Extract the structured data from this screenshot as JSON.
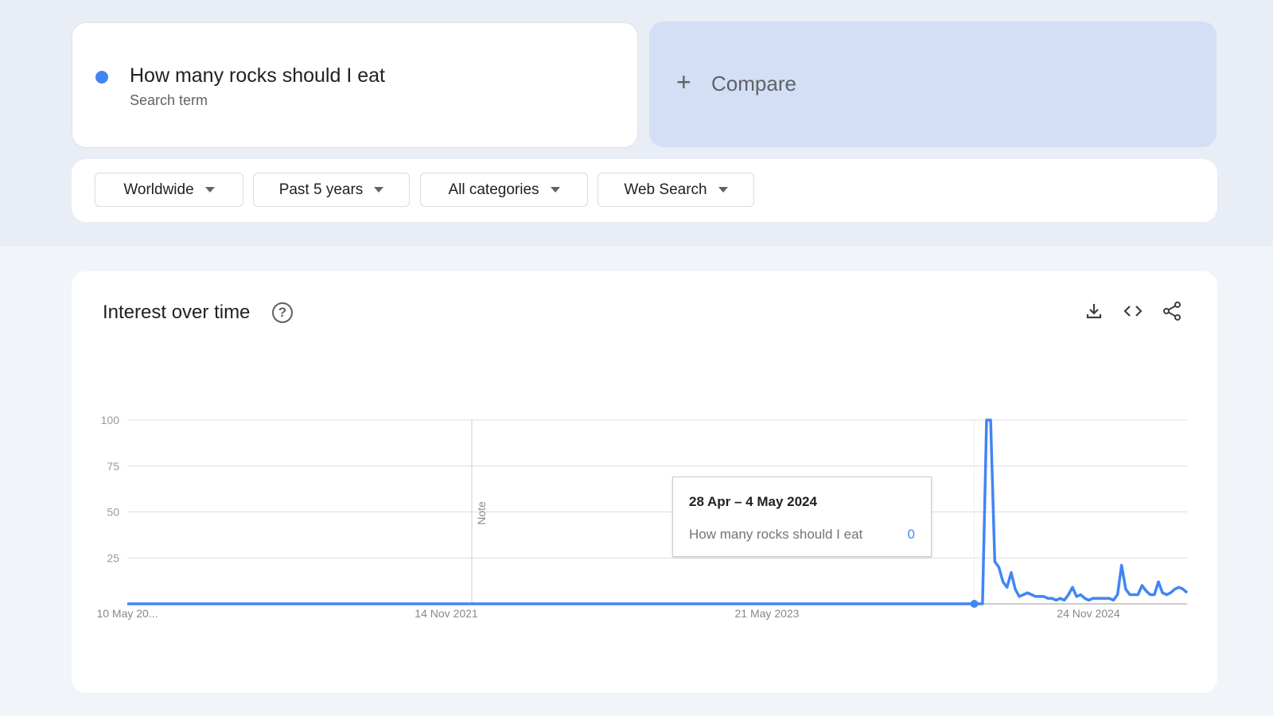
{
  "search": {
    "term": "How many rocks should I eat",
    "subtitle": "Search term",
    "dot_color": "#4285f4"
  },
  "compare": {
    "icon": "plus-icon",
    "plus": "+",
    "label": "Compare"
  },
  "filters": [
    {
      "label": "Worldwide"
    },
    {
      "label": "Past 5 years"
    },
    {
      "label": "All categories"
    },
    {
      "label": "Web Search"
    }
  ],
  "interest": {
    "title": "Interest over time",
    "help": "?",
    "actions": [
      "download-icon",
      "embed-code-icon",
      "share-icon"
    ]
  },
  "tooltip": {
    "date": "28 Apr – 4 May 2024",
    "term": "How many rocks should I eat",
    "value": "0"
  },
  "chart_data": {
    "type": "line",
    "title": "",
    "xlabel": "",
    "ylabel": "",
    "ylim": [
      0,
      100
    ],
    "yticks": [
      "25",
      "50",
      "75",
      "100"
    ],
    "xticks": [
      "10 May 20...",
      "14 Nov 2021",
      "21 May 2023",
      "24 Nov 2024"
    ],
    "annotation": "Note",
    "grid": true,
    "line_color": "#4285f4",
    "x_start": "10 May 2020",
    "x_step": "1 week",
    "series": [
      {
        "values": [
          0,
          0,
          0,
          0,
          0,
          0,
          0,
          0,
          0,
          0,
          0,
          0,
          0,
          0,
          0,
          0,
          0,
          0,
          0,
          0,
          0,
          0,
          0,
          0,
          0,
          0,
          0,
          0,
          0,
          0,
          0,
          0,
          0,
          0,
          0,
          0,
          0,
          0,
          0,
          0,
          0,
          0,
          0,
          0,
          0,
          0,
          0,
          0,
          0,
          0,
          0,
          0,
          0,
          0,
          0,
          0,
          0,
          0,
          0,
          0,
          0,
          0,
          0,
          0,
          0,
          0,
          0,
          0,
          0,
          0,
          0,
          0,
          0,
          0,
          0,
          0,
          0,
          0,
          0,
          0,
          0,
          0,
          0,
          0,
          0,
          0,
          0,
          0,
          0,
          0,
          0,
          0,
          0,
          0,
          0,
          0,
          0,
          0,
          0,
          0,
          0,
          0,
          0,
          0,
          0,
          0,
          0,
          0,
          0,
          0,
          0,
          0,
          0,
          0,
          0,
          0,
          0,
          0,
          0,
          0,
          0,
          0,
          0,
          0,
          0,
          0,
          0,
          0,
          0,
          0,
          0,
          0,
          0,
          0,
          0,
          0,
          0,
          0,
          0,
          0,
          0,
          0,
          0,
          0,
          0,
          0,
          0,
          0,
          0,
          0,
          0,
          0,
          0,
          0,
          0,
          0,
          0,
          0,
          0,
          0,
          0,
          0,
          0,
          0,
          0,
          0,
          0,
          0,
          0,
          0,
          0,
          0,
          0,
          0,
          0,
          0,
          0,
          0,
          0,
          0,
          0,
          0,
          0,
          0,
          0,
          0,
          0,
          0,
          0,
          0,
          0,
          0,
          0,
          0,
          0,
          0,
          0,
          0,
          0,
          0,
          0,
          0,
          0,
          0,
          0,
          0,
          0,
          0,
          0,
          0,
          100,
          100,
          23,
          20,
          12,
          9,
          17,
          8,
          4,
          5,
          6,
          5,
          4,
          4,
          4,
          3,
          3,
          2,
          3,
          2,
          5,
          9,
          4,
          5,
          3,
          2,
          3,
          3,
          3,
          3,
          3,
          2,
          5,
          21,
          8,
          5,
          5,
          5,
          10,
          7,
          5,
          5,
          12,
          6,
          5,
          6,
          8,
          9,
          8,
          6
        ]
      }
    ],
    "highlight": {
      "date": "28 Apr – 4 May 2024",
      "value": 0
    }
  }
}
